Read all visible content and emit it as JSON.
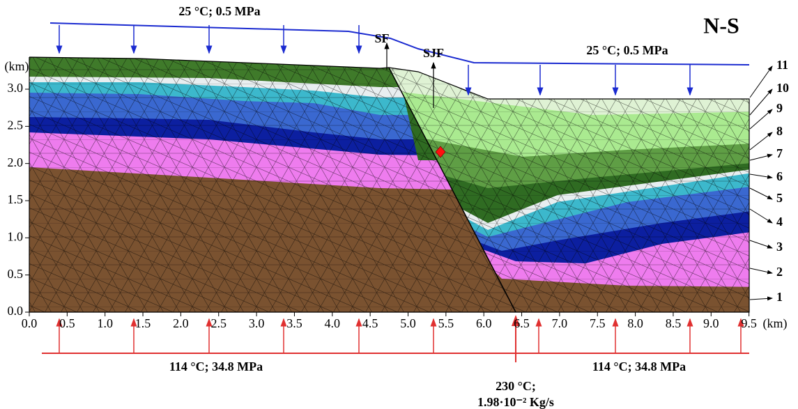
{
  "title": "N-S",
  "top_boundary": {
    "left": "25 °C; 0.5 MPa",
    "right": "25 °C; 0.5 MPa"
  },
  "faults": [
    "SF",
    "SJF"
  ],
  "y_axis": {
    "unit": "(km)",
    "ticks": [
      "3.0",
      "2.5",
      "2.0",
      "1.5",
      "1.0",
      "0.5",
      "0.0"
    ]
  },
  "x_axis": {
    "unit": "(km)",
    "ticks": [
      "0.0",
      "0.5",
      "1.0",
      "1.5",
      "2.0",
      "2.5",
      "3.0",
      "3.5",
      "4.0",
      "4.5",
      "5.0",
      "5.5",
      "6.0",
      "6.5",
      "7.0",
      "7.5",
      "8.0",
      "8.5",
      "9.0",
      "9.5"
    ]
  },
  "bottom_boundary": {
    "left": "114 °C; 34.8 MPa",
    "right": "114 °C; 34.8 MPa",
    "inflow": [
      "230 °C;",
      "1.98·10⁻² Kg/s"
    ]
  },
  "layers": [
    "1",
    "2",
    "3",
    "4",
    "5",
    "6",
    "7",
    "8",
    "9",
    "10",
    "11"
  ]
}
